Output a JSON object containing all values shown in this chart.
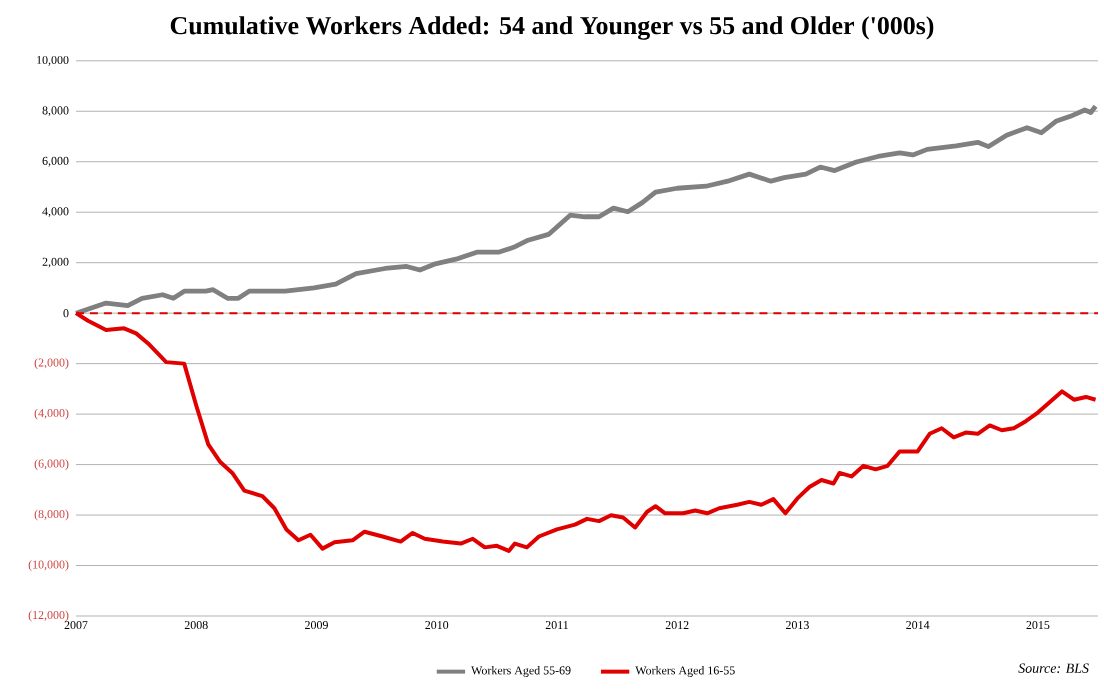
{
  "chart_data": {
    "type": "line",
    "title": "Cumulative Workers Added: 54 and Younger vs 55 and Older ('000s)",
    "xlim": [
      2007,
      2015.5
    ],
    "xticks": [
      2007,
      2008,
      2009,
      2010,
      2011,
      2012,
      2013,
      2014,
      2015
    ],
    "ylim": [
      -12000,
      10000
    ],
    "yticks": [
      {
        "value": -12000,
        "label": "(12,000)"
      },
      {
        "value": -10000,
        "label": "(10,000)"
      },
      {
        "value": -8000,
        "label": "(8,000)"
      },
      {
        "value": -6000,
        "label": "(6,000)"
      },
      {
        "value": -4000,
        "label": "(4,000)"
      },
      {
        "value": -2000,
        "label": "(2,000)"
      },
      0,
      {
        "value": 2000,
        "label": "2,000"
      },
      {
        "value": 4000,
        "label": "4,000"
      },
      {
        "value": 6000,
        "label": "6,000"
      },
      {
        "value": 8000,
        "label": "8,000"
      },
      {
        "value": 10000,
        "label": "10,000"
      }
    ],
    "grid": "y",
    "legend": "bottom",
    "line_style": "solid",
    "marker": "none",
    "ref_lines": [
      {
        "axis": "y",
        "value": 0,
        "color": "#e00000",
        "line_style": "dashed"
      }
    ],
    "annotations": [
      "Source: BLS"
    ],
    "series": [
      {
        "name": "Workers Aged 55-69",
        "color": "#808080",
        "x": [
          2007.0,
          2007.25,
          2007.43,
          2007.55,
          2007.72,
          2007.81,
          2007.9,
          2008.08,
          2008.14,
          2008.26,
          2008.35,
          2008.44,
          2008.74,
          2008.98,
          2009.16,
          2009.33,
          2009.57,
          2009.75,
          2009.86,
          2009.98,
          2010.16,
          2010.34,
          2010.52,
          2010.64,
          2010.76,
          2010.93,
          2011.11,
          2011.23,
          2011.35,
          2011.47,
          2011.59,
          2011.71,
          2011.82,
          2012.0,
          2012.24,
          2012.42,
          2012.6,
          2012.78,
          2012.89,
          2013.07,
          2013.19,
          2013.31,
          2013.49,
          2013.67,
          2013.85,
          2013.96,
          2014.08,
          2014.32,
          2014.5,
          2014.59,
          2014.74,
          2014.91,
          2015.03,
          2015.15,
          2015.27,
          2015.39,
          2015.44,
          2015.48
        ],
        "values": [
          0,
          400,
          300,
          590,
          730,
          590,
          870,
          870,
          930,
          590,
          590,
          870,
          870,
          1000,
          1150,
          1570,
          1770,
          1850,
          1710,
          1940,
          2140,
          2420,
          2420,
          2610,
          2890,
          3120,
          3880,
          3820,
          3820,
          4160,
          4020,
          4380,
          4800,
          4950,
          5030,
          5230,
          5510,
          5230,
          5370,
          5510,
          5790,
          5650,
          5990,
          6210,
          6350,
          6270,
          6490,
          6630,
          6770,
          6600,
          7050,
          7350,
          7150,
          7600,
          7800,
          8050,
          7950,
          8200
        ]
      },
      {
        "name": "Workers Aged 16-55",
        "color": "#e00000",
        "x": [
          2007.0,
          2007.1,
          2007.25,
          2007.4,
          2007.5,
          2007.6,
          2007.75,
          2007.9,
          2008.0,
          2008.1,
          2008.2,
          2008.3,
          2008.4,
          2008.55,
          2008.65,
          2008.75,
          2008.85,
          2008.95,
          2009.05,
          2009.15,
          2009.3,
          2009.4,
          2009.55,
          2009.7,
          2009.8,
          2009.9,
          2010.05,
          2010.2,
          2010.3,
          2010.4,
          2010.5,
          2010.6,
          2010.65,
          2010.75,
          2010.85,
          2011.0,
          2011.15,
          2011.25,
          2011.35,
          2011.45,
          2011.55,
          2011.65,
          2011.75,
          2011.82,
          2011.9,
          2012.05,
          2012.15,
          2012.25,
          2012.35,
          2012.5,
          2012.6,
          2012.7,
          2012.8,
          2012.9,
          2013.0,
          2013.1,
          2013.2,
          2013.3,
          2013.35,
          2013.45,
          2013.55,
          2013.65,
          2013.75,
          2013.85,
          2014.0,
          2014.1,
          2014.2,
          2014.3,
          2014.4,
          2014.5,
          2014.6,
          2014.7,
          2014.8,
          2014.9,
          2015.0,
          2015.1,
          2015.2,
          2015.3,
          2015.4,
          2015.48
        ],
        "values": [
          0,
          -300,
          -670,
          -600,
          -800,
          -1200,
          -1940,
          -2000,
          -3660,
          -5200,
          -5900,
          -6330,
          -7030,
          -7250,
          -7730,
          -8570,
          -9000,
          -8780,
          -9330,
          -9080,
          -9000,
          -8660,
          -8850,
          -9050,
          -8710,
          -8940,
          -9050,
          -9130,
          -8940,
          -9280,
          -9220,
          -9420,
          -9130,
          -9280,
          -8850,
          -8570,
          -8380,
          -8150,
          -8240,
          -8010,
          -8100,
          -8490,
          -7870,
          -7650,
          -7930,
          -7930,
          -7820,
          -7930,
          -7730,
          -7590,
          -7480,
          -7590,
          -7370,
          -7930,
          -7340,
          -6890,
          -6610,
          -6750,
          -6330,
          -6470,
          -6050,
          -6190,
          -6050,
          -5480,
          -5480,
          -4780,
          -4560,
          -4920,
          -4730,
          -4780,
          -4450,
          -4640,
          -4560,
          -4280,
          -3940,
          -3520,
          -3100,
          -3430,
          -3320,
          -3430
        ]
      }
    ]
  }
}
